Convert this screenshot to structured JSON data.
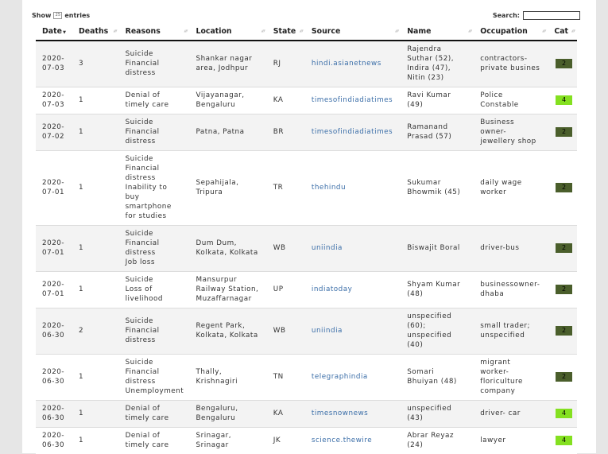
{
  "controls": {
    "show_label": "Show",
    "show_value": "25",
    "entries_label": "entries",
    "search_label": "Search:",
    "search_value": ""
  },
  "columns": [
    "Date",
    "Deaths",
    "Reasons",
    "Location",
    "State",
    "Source",
    "Name",
    "Occupation",
    "Cat"
  ],
  "sorted_column": "Date",
  "category_colors": {
    "2": "#4a5e2b",
    "4": "#84e020"
  },
  "rows": [
    {
      "date": [
        "2020-",
        "07-03"
      ],
      "deaths": "3",
      "reasons": [
        "Suicide",
        "Financial",
        "distress"
      ],
      "location": [
        "Shankar nagar",
        "area, Jodhpur"
      ],
      "state": "RJ",
      "source": "hindi.asianetnews",
      "name": [
        "Rajendra",
        "Suthar (52),",
        "Indira (47),",
        "Nitin (23)"
      ],
      "occupation": [
        "contractors-",
        "private busines"
      ],
      "cat": "2"
    },
    {
      "date": [
        "2020-",
        "07-03"
      ],
      "deaths": "1",
      "reasons": [
        "Denial of",
        "timely care"
      ],
      "location": [
        "Vijayanagar,",
        "Bengaluru"
      ],
      "state": "KA",
      "source": "timesofindiadiatimes",
      "name": [
        "Ravi Kumar",
        "(49)"
      ],
      "occupation": [
        "Police",
        "Constable"
      ],
      "cat": "4"
    },
    {
      "date": [
        "2020-",
        "07-02"
      ],
      "deaths": "1",
      "reasons": [
        "Suicide",
        "Financial",
        "distress"
      ],
      "location": [
        "Patna, Patna"
      ],
      "state": "BR",
      "source": "timesofindiadiatimes",
      "name": [
        "Ramanand",
        "Prasad (57)"
      ],
      "occupation": [
        "Business",
        "owner-",
        "jewellery shop"
      ],
      "cat": "2"
    },
    {
      "date": [
        "2020-",
        "07-01"
      ],
      "deaths": "1",
      "reasons": [
        "Suicide",
        "Financial",
        "distress",
        "Inability to",
        "buy",
        "smartphone",
        "for studies"
      ],
      "location": [
        "Sepahijala,",
        "Tripura"
      ],
      "state": "TR",
      "source": "thehindu",
      "name": [
        "Sukumar",
        "Bhowmik (45)"
      ],
      "occupation": [
        "daily wage",
        "worker"
      ],
      "cat": "2"
    },
    {
      "date": [
        "2020-",
        "07-01"
      ],
      "deaths": "1",
      "reasons": [
        "Suicide",
        "Financial",
        "distress",
        "Job loss"
      ],
      "location": [
        "Dum Dum,",
        "Kolkata, Kolkata"
      ],
      "state": "WB",
      "source": "uniindia",
      "name": [
        "Biswajit Boral"
      ],
      "occupation": [
        "driver-bus"
      ],
      "cat": "2"
    },
    {
      "date": [
        "2020-",
        "07-01"
      ],
      "deaths": "1",
      "reasons": [
        "Suicide",
        "Loss of",
        "livelihood"
      ],
      "location": [
        "Mansurpur",
        "Railway Station,",
        "Muzaffarnagar"
      ],
      "state": "UP",
      "source": "indiatoday",
      "name": [
        "Shyam Kumar",
        "(48)"
      ],
      "occupation": [
        "businessowner-",
        "dhaba"
      ],
      "cat": "2"
    },
    {
      "date": [
        "2020-",
        "06-30"
      ],
      "deaths": "2",
      "reasons": [
        "Suicide",
        "Financial",
        "distress"
      ],
      "location": [
        "Regent Park,",
        "Kolkata, Kolkata"
      ],
      "state": "WB",
      "source": "uniindia",
      "name": [
        "unspecified",
        "(60);",
        "unspecified",
        "(40)"
      ],
      "occupation": [
        "small trader;",
        "unspecified"
      ],
      "cat": "2"
    },
    {
      "date": [
        "2020-",
        "06-30"
      ],
      "deaths": "1",
      "reasons": [
        "Suicide",
        "Financial",
        "distress",
        "Unemployment"
      ],
      "location": [
        "Thally,",
        "Krishnagiri"
      ],
      "state": "TN",
      "source": "telegraphindia",
      "name": [
        "Somari",
        "Bhuiyan (48)"
      ],
      "occupation": [
        "migrant",
        "worker-",
        "floriculture",
        "company"
      ],
      "cat": "2"
    },
    {
      "date": [
        "2020-",
        "06-30"
      ],
      "deaths": "1",
      "reasons": [
        "Denial of",
        "timely care"
      ],
      "location": [
        "Bengaluru,",
        "Bengaluru"
      ],
      "state": "KA",
      "source": "timesnownews",
      "name": [
        "unspecified",
        "(43)"
      ],
      "occupation": [
        "driver- car"
      ],
      "cat": "4"
    },
    {
      "date": [
        "2020-",
        "06-30"
      ],
      "deaths": "1",
      "reasons": [
        "Denial of",
        "timely care"
      ],
      "location": [
        "Srinagar,",
        "Srinagar"
      ],
      "state": "JK",
      "source": "science.thewire",
      "name": [
        "Abrar Reyaz",
        "(24)"
      ],
      "occupation": [
        "lawyer"
      ],
      "cat": "4"
    }
  ]
}
